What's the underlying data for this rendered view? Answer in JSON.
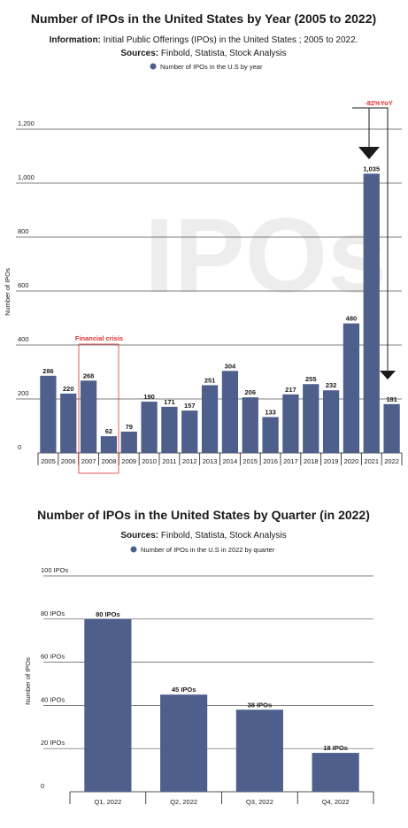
{
  "chart_data": [
    {
      "type": "bar",
      "title": "Number of IPOs in the United States by Year (2005 to 2022)",
      "info_label": "Information:",
      "info_text": "Initial Public Offerings (IPOs) in the United States ; 2005 to 2022.",
      "sources_label": "Sources:",
      "sources_text": "Finbold, Statista, Stock Analysis",
      "legend": "Number of IPOs in the U.S by year",
      "ylabel": "Number of IPOs",
      "watermark": "IPOs",
      "categories": [
        "2005",
        "2006",
        "2007",
        "2008",
        "2009",
        "2010",
        "2011",
        "2012",
        "2013",
        "2014",
        "2015",
        "2016",
        "2017",
        "2018",
        "2019",
        "2020",
        "2021",
        "2022"
      ],
      "values": [
        286,
        220,
        268,
        62,
        79,
        190,
        171,
        157,
        251,
        304,
        206,
        133,
        217,
        255,
        232,
        480,
        1035,
        181
      ],
      "ylim": [
        0,
        1200
      ],
      "yticks": [
        0,
        200,
        400,
        600,
        800,
        1000,
        1200
      ],
      "ytick_labels": [
        "0",
        "200",
        "400",
        "600",
        "800",
        "1,000",
        "1,200"
      ],
      "data_labels": [
        "286",
        "220",
        "268",
        "62",
        "79",
        "190",
        "171",
        "157",
        "251",
        "304",
        "206",
        "133",
        "217",
        "255",
        "232",
        "480",
        "1,035",
        "181"
      ],
      "annotations": {
        "financial_crisis": "Financial crisis",
        "yoy": "-82%YoY"
      },
      "colors": {
        "bar": "#4e5f8c",
        "accent": "#e03131"
      },
      "grid": true,
      "legend_position": "top"
    },
    {
      "type": "bar",
      "title": "Number of IPOs in the United States by Quarter (in 2022)",
      "sources_label": "Sources:",
      "sources_text": "Finbold, Statista, Stock Analysis",
      "legend": "Number of IPOs in the U.S in 2022 by quarter",
      "ylabel": "Number of IPOs",
      "categories": [
        "Q1, 2022",
        "Q2, 2022",
        "Q3, 2022",
        "Q4, 2022"
      ],
      "values": [
        80,
        45,
        38,
        18
      ],
      "ylim": [
        0,
        100
      ],
      "yticks": [
        0,
        20,
        40,
        60,
        80,
        100
      ],
      "ytick_labels": [
        "0",
        "20 IPOs",
        "40 IPOs",
        "60 IPOs",
        "80 IPOs",
        "100 IPOs"
      ],
      "data_labels": [
        "80 IPOs",
        "45 IPOs",
        "38 IPOs",
        "18 IPOs"
      ],
      "colors": {
        "bar": "#4e5f8c"
      },
      "grid": true,
      "legend_position": "top"
    }
  ]
}
